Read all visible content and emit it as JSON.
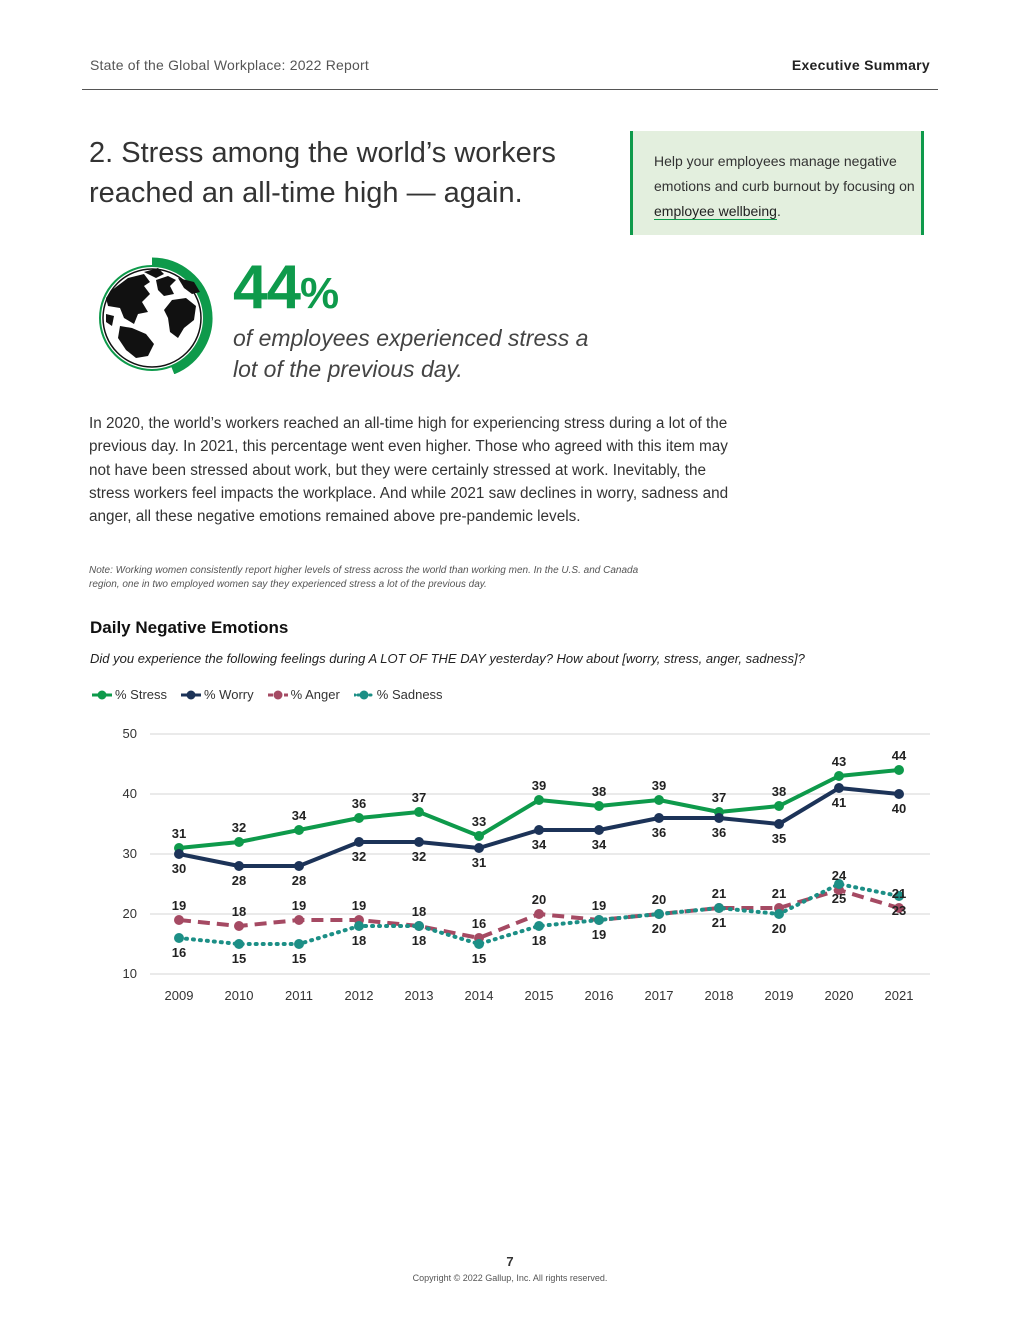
{
  "header": {
    "report_title": "State of the Global Workplace: 2022 Report",
    "section": "Executive Summary"
  },
  "headline": "2. Stress among the world’s workers reached an all-time high — again.",
  "callout": {
    "text_before": "Help your employees manage negative emotions and curb burnout by focusing on ",
    "link_text": "employee wellbeing",
    "text_after": "."
  },
  "stat": {
    "value": "44",
    "unit": "%",
    "description": "of employees experienced stress a lot of the previous day.",
    "ring_fraction": 0.44
  },
  "body": "In 2020, the world’s workers reached an all-time high for experiencing stress during a lot of the previous day. In 2021, this percentage went even higher. Those who agreed with this item may not have been stressed about work, but they were certainly stressed at work. Inevitably, the stress workers feel impacts the workplace. And while 2021 saw declines in worry, sadness and anger, all these negative emotions remained above pre-pandemic levels.",
  "note": "Note: Working women consistently report higher levels of stress across the world than working men. In the U.S. and Canada region, one in two employed women say they experienced stress a lot of the previous day.",
  "chart_data": {
    "type": "line",
    "title": "Daily Negative Emotions",
    "subtitle": "Did you experience the following feelings during A LOT OF THE DAY yesterday? How about [worry, stress, anger, sadness]?",
    "x": [
      "2009",
      "2010",
      "2011",
      "2012",
      "2013",
      "2014",
      "2015",
      "2016",
      "2017",
      "2018",
      "2019",
      "2020",
      "2021"
    ],
    "ylim": [
      10,
      50
    ],
    "yticks": [
      "10",
      "20",
      "30",
      "40",
      "50"
    ],
    "grid": true,
    "legend_position": "top-left",
    "series": [
      {
        "name": "% Stress",
        "color": "#0e9a4b",
        "style": "solid",
        "label_pos": "above",
        "values": [
          31,
          32,
          34,
          36,
          37,
          33,
          39,
          38,
          39,
          37,
          38,
          43,
          44
        ]
      },
      {
        "name": "% Worry",
        "color": "#1c3358",
        "style": "solid",
        "label_pos": "below",
        "values": [
          30,
          28,
          28,
          32,
          32,
          31,
          34,
          34,
          36,
          36,
          35,
          41,
          40
        ]
      },
      {
        "name": "% Anger",
        "color": "#a54a63",
        "style": "dashed",
        "label_pos": "above",
        "values": [
          19,
          18,
          19,
          19,
          18,
          16,
          20,
          19,
          20,
          21,
          21,
          24,
          21
        ]
      },
      {
        "name": "% Sadness",
        "color": "#1c8f86",
        "style": "dotted",
        "label_pos": "below",
        "values": [
          16,
          15,
          15,
          18,
          18,
          15,
          18,
          19,
          20,
          21,
          20,
          25,
          23
        ]
      }
    ]
  },
  "footer": {
    "page": "7",
    "copyright": "Copyright © 2022 Gallup, Inc. All rights reserved."
  }
}
